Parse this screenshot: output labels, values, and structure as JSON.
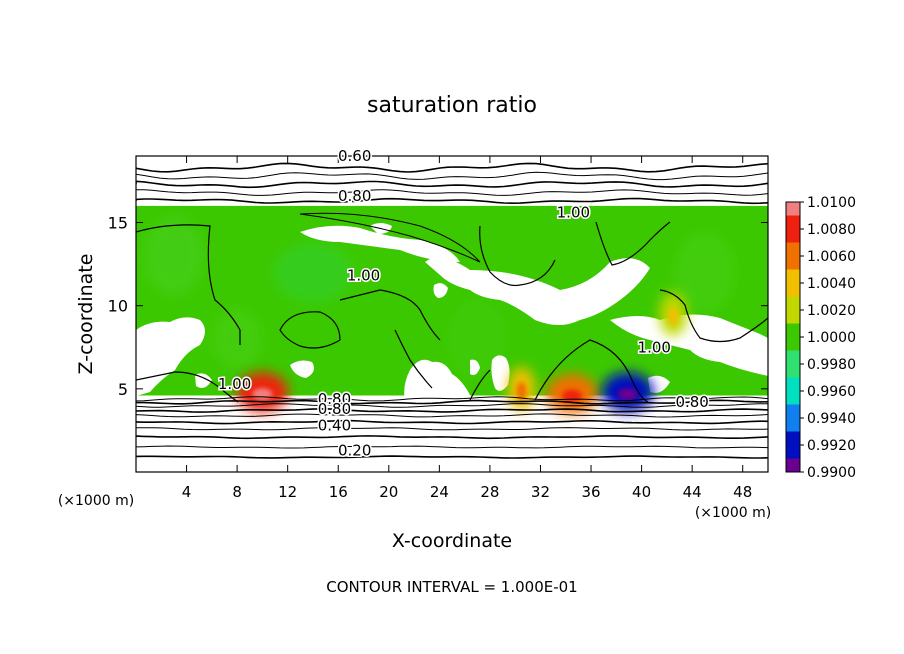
{
  "chart_data": {
    "type": "heatmap",
    "title": "saturation ratio",
    "xlabel": "X-coordinate",
    "ylabel": "Z-coordinate",
    "x_unit": "(×1000 m)",
    "y_unit": "(×1000 m)",
    "xlim": [
      0,
      50
    ],
    "ylim": [
      0,
      19
    ],
    "x_ticks": [
      4,
      8,
      12,
      16,
      20,
      24,
      28,
      32,
      36,
      40,
      44,
      48
    ],
    "y_ticks": [
      5,
      10,
      15
    ],
    "footer": "CONTOUR INTERVAL = 1.000E-01",
    "colorbar": {
      "min": 0.99,
      "max": 1.01,
      "ticks": [
        "1.0100",
        "1.0080",
        "1.0060",
        "1.0040",
        "1.0020",
        "1.0000",
        "0.9980",
        "0.9960",
        "0.9940",
        "0.9920",
        "0.9900"
      ],
      "colors": [
        "#f08080",
        "#f02010",
        "#f07000",
        "#f0c000",
        "#c0d800",
        "#3cc800",
        "#30e070",
        "#00e0c0",
        "#1080f0",
        "#0010c0",
        "#6a0090"
      ]
    },
    "cloud_layer": {
      "z_bottom": 4.6,
      "z_top": 16.0,
      "base_value": 1.0
    },
    "hotspots": [
      {
        "x": 10.0,
        "z": 4.8,
        "value": 1.008
      },
      {
        "x": 34.5,
        "z": 4.7,
        "value": 1.006
      },
      {
        "x": 38.9,
        "z": 4.8,
        "value": 0.993
      },
      {
        "x": 30.5,
        "z": 5.0,
        "value": 1.004
      },
      {
        "x": 42.5,
        "z": 9.5,
        "value": 1.003
      }
    ],
    "contour_labels": [
      {
        "text": "0.60",
        "x": 17.3,
        "z": 19.0
      },
      {
        "text": "0.80",
        "x": 17.3,
        "z": 16.6
      },
      {
        "text": "1.00",
        "x": 34.6,
        "z": 15.6
      },
      {
        "text": "1.00",
        "x": 18.0,
        "z": 11.8
      },
      {
        "text": "1.00",
        "x": 7.8,
        "z": 5.3
      },
      {
        "text": "1.00",
        "x": 41.0,
        "z": 7.5
      },
      {
        "text": "0.80",
        "x": 44.0,
        "z": 4.2
      },
      {
        "text": "0.80",
        "x": 15.7,
        "z": 4.4
      },
      {
        "text": "0.80",
        "x": 15.7,
        "z": 3.8
      },
      {
        "text": "0.40",
        "x": 15.7,
        "z": 2.8
      },
      {
        "text": "0.20",
        "x": 17.3,
        "z": 1.3
      }
    ],
    "lower_contours_z": [
      0.9,
      1.5,
      2.1,
      2.6,
      3.0,
      3.4,
      3.7,
      4.0,
      4.2,
      4.4
    ],
    "upper_contours_z": [
      16.3,
      16.8,
      17.3,
      17.8,
      18.3
    ]
  }
}
